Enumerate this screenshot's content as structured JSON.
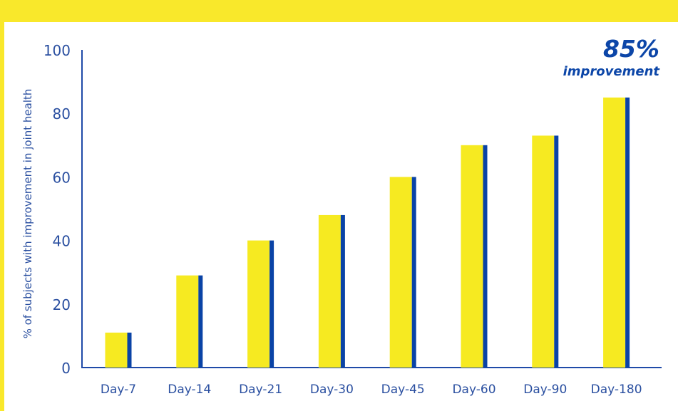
{
  "colors": {
    "brand_yellow": "#f9e82b",
    "bar_yellow": "#f6ea21",
    "bar_blue": "#0a43a6",
    "axis_blue": "#1f4aa8",
    "text_blue": "#2a4fa0",
    "callout_blue": "#0c46a8"
  },
  "callout": {
    "value": "85%",
    "text": "improvement"
  },
  "chart_data": {
    "type": "bar",
    "categories": [
      "Day-7",
      "Day-14",
      "Day-21",
      "Day-30",
      "Day-45",
      "Day-60",
      "Day-90",
      "Day-180"
    ],
    "values": [
      11,
      29,
      40,
      48,
      60,
      70,
      73,
      85
    ],
    "title": "",
    "xlabel": "",
    "ylabel": "% of subjects with improvement in joint health",
    "ylim": [
      0,
      100
    ],
    "yticks": [
      0,
      20,
      40,
      60,
      80,
      100
    ],
    "grid": false
  }
}
